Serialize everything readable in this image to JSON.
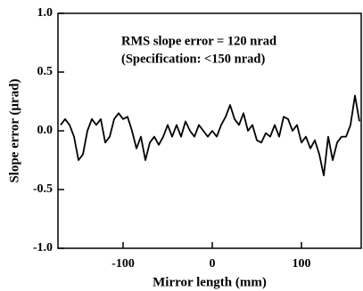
{
  "chart_data": {
    "type": "line",
    "xlabel": "Mirror length (mm)",
    "ylabel": "Slope error (μrad)",
    "annotations": [
      "RMS slope error = 120 nrad",
      "(Specification: <150 nrad)"
    ],
    "x": [
      -170,
      -165,
      -160,
      -155,
      -150,
      -145,
      -140,
      -135,
      -130,
      -125,
      -120,
      -115,
      -110,
      -105,
      -100,
      -95,
      -90,
      -85,
      -80,
      -75,
      -70,
      -65,
      -60,
      -55,
      -50,
      -45,
      -40,
      -35,
      -30,
      -25,
      -20,
      -15,
      -10,
      -5,
      0,
      5,
      10,
      15,
      20,
      25,
      30,
      35,
      40,
      45,
      50,
      55,
      60,
      65,
      70,
      75,
      80,
      85,
      90,
      95,
      100,
      105,
      110,
      115,
      120,
      125,
      130,
      135,
      140,
      145,
      150,
      155,
      160,
      165
    ],
    "series": [
      {
        "color": "#000000",
        "values": [
          0.05,
          0.1,
          0.05,
          -0.05,
          -0.25,
          -0.2,
          0.0,
          0.1,
          0.05,
          0.1,
          -0.1,
          -0.05,
          0.1,
          0.15,
          0.1,
          0.12,
          0.0,
          -0.15,
          -0.05,
          -0.25,
          -0.1,
          -0.05,
          -0.12,
          -0.05,
          0.05,
          -0.05,
          0.05,
          -0.05,
          0.08,
          0.0,
          -0.05,
          0.05,
          0.0,
          -0.05,
          0.0,
          -0.05,
          0.05,
          0.12,
          0.22,
          0.1,
          0.05,
          0.15,
          0.0,
          0.05,
          -0.08,
          -0.1,
          -0.02,
          -0.05,
          0.05,
          -0.05,
          0.12,
          0.1,
          0.0,
          0.05,
          -0.1,
          -0.05,
          -0.15,
          -0.08,
          -0.2,
          -0.38,
          -0.05,
          -0.25,
          -0.1,
          -0.05,
          -0.05,
          0.05,
          0.3,
          0.08
        ]
      }
    ],
    "xlim": [
      -173,
      167
    ],
    "xticks": [
      -100,
      0,
      100
    ],
    "ylim": [
      -1,
      1
    ],
    "yticks": [
      {
        "value": -1,
        "label": "-1.0"
      },
      {
        "value": -0.5,
        "label": "-0.5"
      },
      {
        "value": 0,
        "label": "0.0"
      },
      {
        "value": 0.5,
        "label": "0.5"
      },
      {
        "value": 1,
        "label": "1.0"
      }
    ]
  }
}
